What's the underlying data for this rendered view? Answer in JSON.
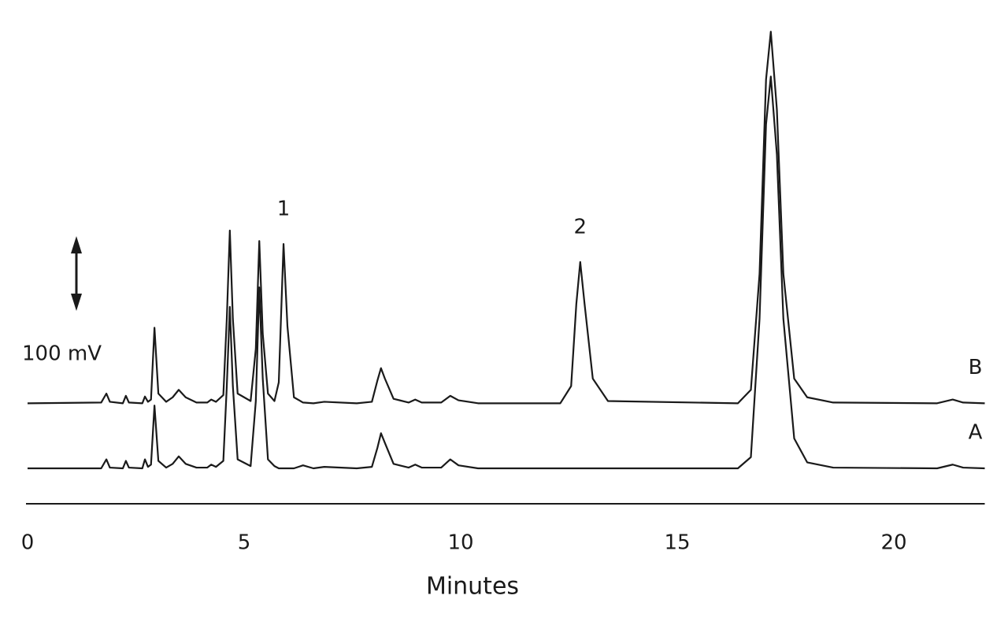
{
  "chart_data": {
    "type": "line",
    "xlabel": "Minutes",
    "xlim": [
      0,
      22.1
    ],
    "xticks": [
      0,
      5,
      10,
      15,
      20
    ],
    "ylim": [
      -25,
      600
    ],
    "grid": false,
    "scale_bar": {
      "value": 100,
      "label": "100 mV"
    },
    "annotations": [
      {
        "text": "1",
        "x": 5.91
      },
      {
        "text": "2",
        "x": 12.76
      }
    ],
    "x": [
      0,
      1.7,
      1.82,
      1.9,
      2.2,
      2.27,
      2.34,
      2.65,
      2.71,
      2.78,
      2.85,
      2.93,
      3.02,
      3.2,
      3.35,
      3.49,
      3.65,
      3.9,
      4.15,
      4.24,
      4.35,
      4.52,
      4.6,
      4.67,
      4.74,
      4.85,
      5.15,
      5.27,
      5.35,
      5.43,
      5.55,
      5.7,
      5.8,
      5.91,
      6.0,
      6.15,
      6.36,
      6.6,
      6.85,
      7.6,
      7.95,
      8.08,
      8.16,
      8.25,
      8.45,
      8.8,
      8.95,
      9.1,
      9.55,
      9.76,
      9.95,
      10.4,
      12.3,
      12.55,
      12.67,
      12.76,
      12.86,
      13.05,
      13.4,
      16.4,
      16.7,
      16.9,
      17.05,
      17.16,
      17.3,
      17.45,
      17.7,
      18.0,
      18.6,
      21.0,
      21.36,
      21.6,
      22.1
    ],
    "series": [
      {
        "name": "B",
        "color": "#1a1a1a",
        "values": [
          87,
          88,
          100,
          89,
          87,
          97,
          88,
          87,
          96,
          89,
          92,
          188,
          100,
          89,
          95,
          105,
          95,
          88,
          88,
          92,
          89,
          98,
          200,
          318,
          200,
          100,
          90,
          160,
          304,
          180,
          100,
          90,
          115,
          300,
          190,
          95,
          88,
          87,
          89,
          87,
          89,
          118,
          134,
          120,
          93,
          88,
          92,
          88,
          88,
          97,
          91,
          87,
          87,
          110,
          220,
          276,
          220,
          120,
          90,
          87,
          105,
          260,
          520,
          584,
          480,
          260,
          120,
          95,
          88,
          87,
          92,
          88,
          87
        ]
      },
      {
        "name": "A",
        "color": "#1a1a1a",
        "values": [
          0,
          0,
          12,
          1,
          0,
          10,
          1,
          0,
          12,
          2,
          5,
          84,
          10,
          1,
          6,
          16,
          6,
          1,
          1,
          5,
          2,
          10,
          110,
          216,
          110,
          12,
          3,
          90,
          242,
          120,
          12,
          3,
          0,
          0,
          0,
          0,
          4,
          0,
          2,
          0,
          2,
          28,
          47,
          34,
          6,
          1,
          5,
          1,
          1,
          12,
          4,
          0,
          0,
          0,
          0,
          0,
          0,
          0,
          0,
          0,
          15,
          200,
          460,
          524,
          420,
          200,
          40,
          8,
          1,
          0,
          5,
          1,
          0
        ]
      }
    ]
  }
}
